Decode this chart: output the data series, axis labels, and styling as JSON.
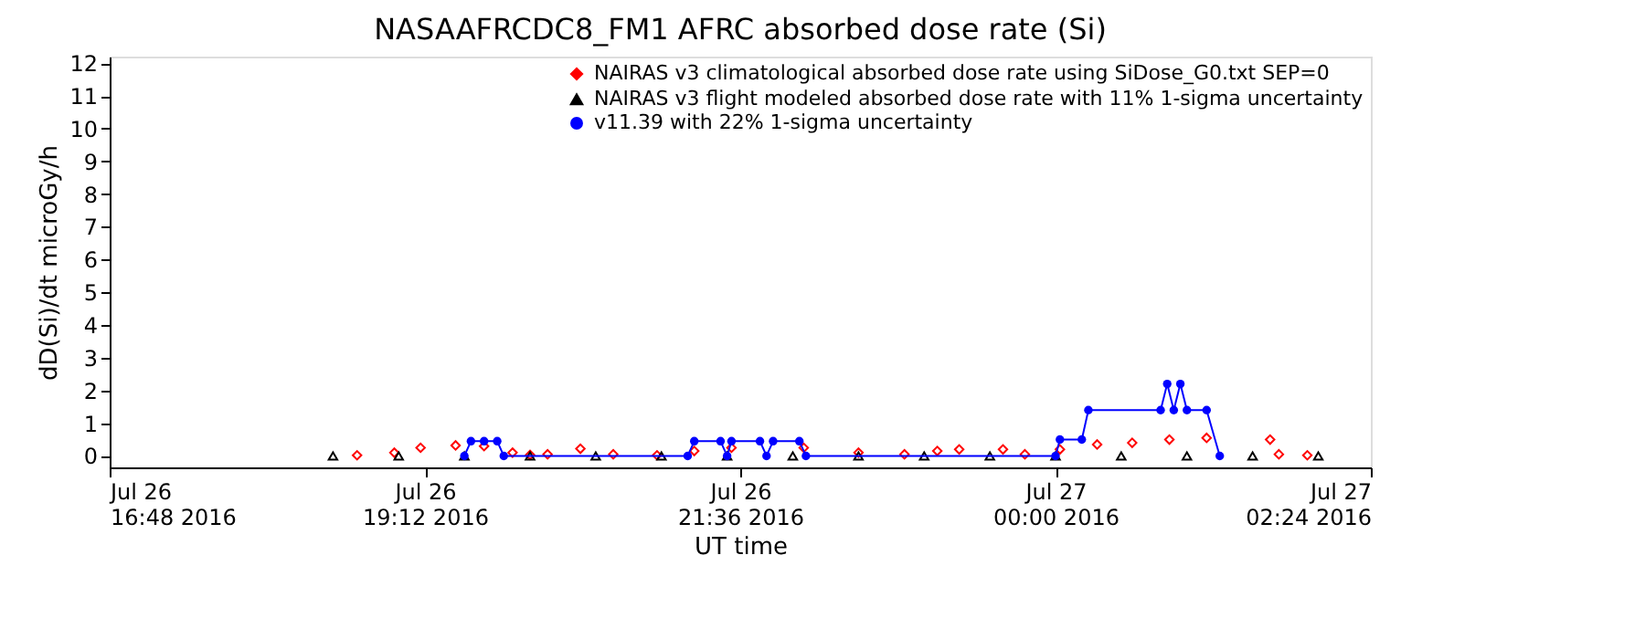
{
  "chart_data": {
    "type": "scatter",
    "title": "NASAAFRCDC8_FM1 AFRC absorbed dose rate (Si)",
    "xlabel": "UT time",
    "ylabel": "dD(Si)/dt microGy/h",
    "xlim": [
      "2016-07-26T16:48",
      "2016-07-27T02:24"
    ],
    "xticks": [
      {
        "value": "2016-07-26T16:48",
        "label": "Jul 26\n16:48 2016"
      },
      {
        "value": "2016-07-26T19:12",
        "label": "Jul 26\n19:12 2016"
      },
      {
        "value": "2016-07-26T21:36",
        "label": "Jul 26\n21:36 2016"
      },
      {
        "value": "2016-07-27T00:00",
        "label": "Jul 27\n00:00 2016"
      },
      {
        "value": "2016-07-27T02:24",
        "label": "Jul 27\n02:24 2016"
      }
    ],
    "ylim": [
      -0.35,
      12.2
    ],
    "yticks": [
      0,
      1,
      2,
      3,
      4,
      5,
      6,
      7,
      8,
      9,
      10,
      11,
      12
    ],
    "grid": false,
    "legend": "top right",
    "series": [
      {
        "name": "NAIRAS v3 climatological absorbed dose rate using SiDose_G0.txt SEP=0",
        "type": "scatter",
        "marker": "diamond",
        "color": "#ff0000",
        "x": [
          "2016-07-26T18:41",
          "2016-07-26T18:58",
          "2016-07-26T19:10",
          "2016-07-26T19:26",
          "2016-07-26T19:39",
          "2016-07-26T19:52",
          "2016-07-26T20:00",
          "2016-07-26T20:08",
          "2016-07-26T20:23",
          "2016-07-26T20:38",
          "2016-07-26T20:58",
          "2016-07-26T21:15",
          "2016-07-26T21:32",
          "2016-07-26T22:05",
          "2016-07-26T22:30",
          "2016-07-26T22:51",
          "2016-07-26T23:06",
          "2016-07-26T23:16",
          "2016-07-26T23:36",
          "2016-07-26T23:46",
          "2016-07-27T00:02",
          "2016-07-27T00:19",
          "2016-07-27T00:35",
          "2016-07-27T00:52",
          "2016-07-27T01:09",
          "2016-07-27T01:38",
          "2016-07-27T01:42",
          "2016-07-27T01:55"
        ],
        "values": [
          0.02,
          0.1,
          0.25,
          0.32,
          0.3,
          0.1,
          0.03,
          0.05,
          0.22,
          0.05,
          0.02,
          0.15,
          0.25,
          0.25,
          0.1,
          0.05,
          0.15,
          0.2,
          0.2,
          0.05,
          0.2,
          0.35,
          0.4,
          0.5,
          0.55,
          0.5,
          0.05,
          0.02
        ]
      },
      {
        "name": "NAIRAS v3 flight modeled absorbed dose rate with 11% 1-sigma uncertainty",
        "type": "scatter",
        "marker": "triangle",
        "color": "#000000",
        "x": [
          "2016-07-26T18:30",
          "2016-07-26T19:00",
          "2016-07-26T19:30",
          "2016-07-26T20:00",
          "2016-07-26T20:30",
          "2016-07-26T21:00",
          "2016-07-26T21:30",
          "2016-07-26T22:00",
          "2016-07-26T22:30",
          "2016-07-26T23:00",
          "2016-07-26T23:30",
          "2016-07-27T00:00",
          "2016-07-27T00:30",
          "2016-07-27T01:00",
          "2016-07-27T01:30",
          "2016-07-27T02:00"
        ],
        "values": [
          0,
          0,
          0,
          0,
          0,
          0,
          0,
          0,
          0,
          0,
          0,
          0,
          0,
          0,
          0,
          0
        ]
      },
      {
        "name": "v11.39 with 22% 1-sigma uncertainty",
        "type": "line",
        "marker": "circle",
        "color": "#0000ff",
        "x": [
          "2016-07-26T19:30",
          "2016-07-26T19:33",
          "2016-07-26T19:39",
          "2016-07-26T19:45",
          "2016-07-26T19:48",
          "2016-07-26T21:12",
          "2016-07-26T21:15",
          "2016-07-26T21:27",
          "2016-07-26T21:30",
          "2016-07-26T21:32",
          "2016-07-26T21:45",
          "2016-07-26T21:48",
          "2016-07-26T21:51",
          "2016-07-26T22:03",
          "2016-07-26T22:06",
          "2016-07-27T00:00",
          "2016-07-27T00:02",
          "2016-07-27T00:12",
          "2016-07-27T00:15",
          "2016-07-27T00:48",
          "2016-07-27T00:51",
          "2016-07-27T00:54",
          "2016-07-27T00:57",
          "2016-07-27T01:00",
          "2016-07-27T01:09",
          "2016-07-27T01:15"
        ],
        "values": [
          0,
          0.45,
          0.45,
          0.45,
          0,
          0,
          0.45,
          0.45,
          0,
          0.45,
          0.45,
          0,
          0.45,
          0.45,
          0,
          0,
          0.5,
          0.5,
          1.4,
          1.4,
          2.2,
          1.4,
          2.2,
          1.4,
          1.4,
          0
        ]
      }
    ]
  }
}
